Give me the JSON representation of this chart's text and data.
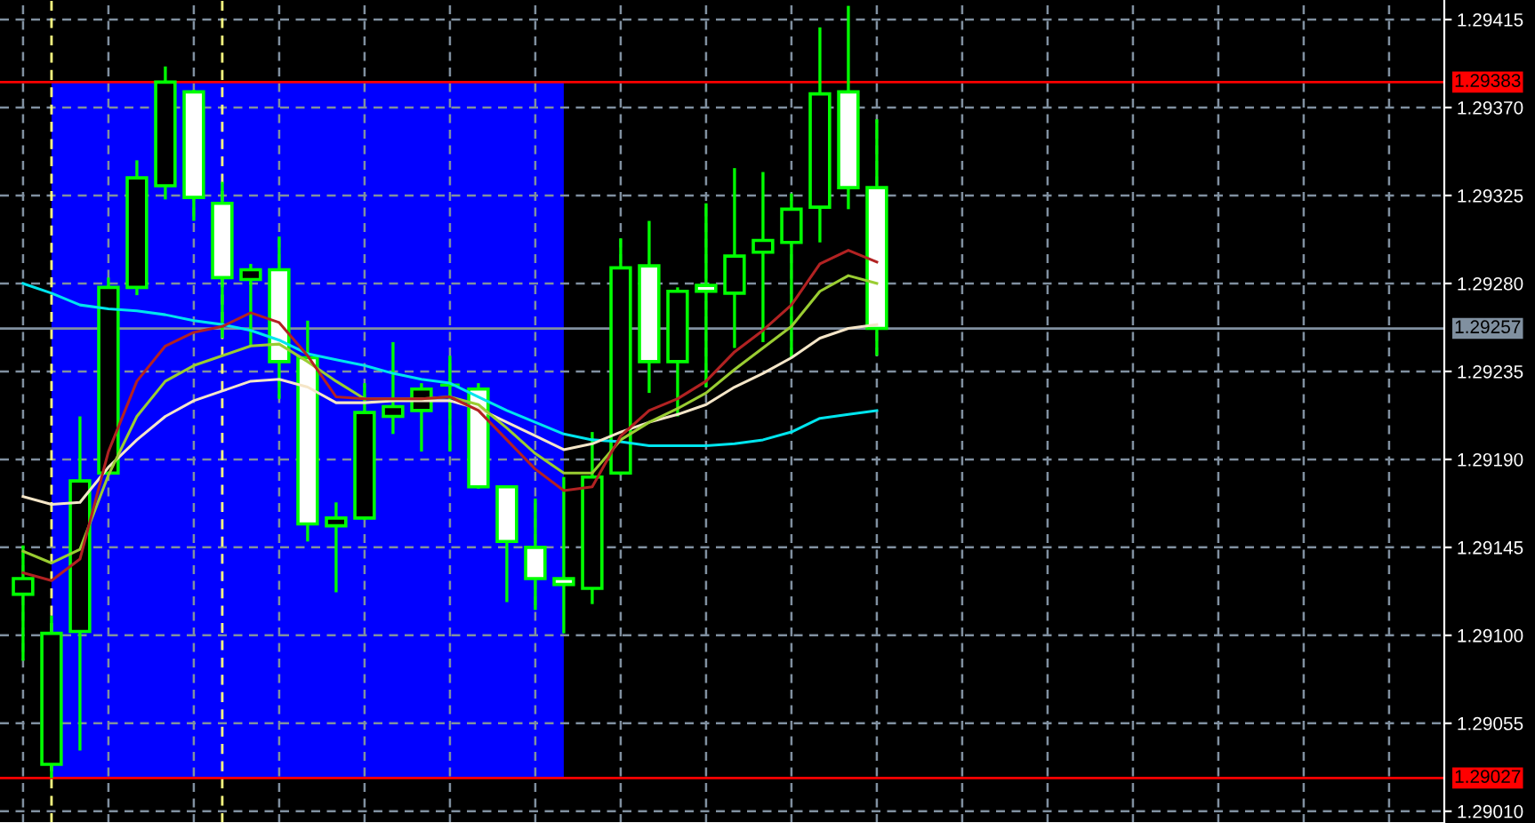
{
  "chart_data": {
    "type": "candlestick",
    "ylim": [
      1.29004,
      1.29425
    ],
    "yticks": [
      {
        "value": 1.2901,
        "label": "1.29010"
      },
      1.29055,
      {
        "value": 1.291,
        "label": "1.29100"
      },
      1.29145,
      {
        "value": 1.2919,
        "label": "1.29190"
      },
      1.29235,
      {
        "value": 1.2928,
        "label": "1.29280"
      },
      1.29325,
      {
        "value": 1.2937,
        "label": "1.29370"
      },
      1.29415
    ],
    "categories": [
      null,
      null,
      null,
      null,
      null,
      null,
      null,
      null,
      null,
      null,
      null,
      null,
      null,
      null,
      null,
      null,
      null,
      null,
      null,
      null,
      null,
      null,
      null,
      null,
      null,
      null,
      null,
      null,
      null,
      null,
      null
    ],
    "tick_labels": "y",
    "grid": true,
    "ref_lines": [
      {
        "axis": "y",
        "value": 1.29383,
        "label": "1.29383",
        "color": "#ff0000"
      },
      {
        "axis": "y",
        "value": 1.29027,
        "label": "1.29027",
        "color": "#ff0000"
      },
      {
        "axis": "y",
        "value": 1.29257,
        "label": "1.29257",
        "color": "#8090a0"
      }
    ],
    "series": [
      {
        "type": "line",
        "color": "#00e5ee",
        "values": [
          1.2928,
          1.29275,
          1.29269,
          1.29267,
          1.29266,
          1.29264,
          1.29261,
          1.29259,
          1.29256,
          1.29251,
          1.29244,
          1.29241,
          1.29238,
          1.29234,
          1.29231,
          1.29229,
          1.29222,
          1.29215,
          1.29209,
          1.29203,
          1.292,
          1.29199,
          1.29197,
          1.29197,
          1.29197,
          1.29198,
          1.292,
          1.29204,
          1.29211,
          1.29213,
          1.29215
        ]
      },
      {
        "type": "line",
        "color": "#f5e6c8",
        "values": [
          1.29171,
          1.29167,
          1.29168,
          1.29186,
          1.292,
          1.29212,
          1.2922,
          1.29225,
          1.2923,
          1.29231,
          1.29227,
          1.29219,
          1.29219,
          1.2922,
          1.2922,
          1.2922,
          1.29216,
          1.29209,
          1.29202,
          1.29195,
          1.29198,
          1.29204,
          1.29209,
          1.29213,
          1.29218,
          1.29227,
          1.29234,
          1.29242,
          1.29252,
          1.29257,
          1.29259
        ]
      },
      {
        "type": "line",
        "color": "#9acd32",
        "values": [
          1.29143,
          1.29137,
          1.29144,
          1.29182,
          1.29212,
          1.2923,
          1.29238,
          1.29243,
          1.29248,
          1.29249,
          1.2924,
          1.2923,
          1.29221,
          1.29221,
          1.29221,
          1.29222,
          1.29218,
          1.29206,
          1.29193,
          1.29183,
          1.29183,
          1.292,
          1.29209,
          1.29216,
          1.29224,
          1.29236,
          1.29247,
          1.29258,
          1.29276,
          1.29284,
          1.2928
        ]
      },
      {
        "type": "line",
        "color": "#b22222",
        "values": [
          1.29132,
          1.29128,
          1.29139,
          1.29194,
          1.2923,
          1.29248,
          1.29255,
          1.29258,
          1.29265,
          1.2926,
          1.29243,
          1.29222,
          1.29221,
          1.29221,
          1.29221,
          1.29222,
          1.29215,
          1.292,
          1.29185,
          1.29174,
          1.29176,
          1.29202,
          1.29215,
          1.29221,
          1.2923,
          1.29245,
          1.29256,
          1.29269,
          1.2929,
          1.29297,
          1.29291
        ]
      },
      {
        "color": "#00ff00",
        "colors": [
          "#000000",
          "#000000",
          "#000000",
          "#000000",
          "#000000",
          "#000000",
          "#ffffff",
          "#ffffff",
          "#000000",
          "#ffffff",
          "#ffffff",
          "#000000",
          "#000000",
          "#000000",
          "#000000",
          "#00ff00",
          "#ffffff",
          "#ffffff",
          "#ffffff",
          "#ffffff",
          "#000000",
          "#000000",
          "#ffffff",
          "#000000",
          "#ffffff",
          "#000000",
          "#000000",
          "#000000",
          "#000000",
          "#ffffff",
          "#ffffff"
        ],
        "ohlc": [
          [
            1.29121,
            1.29146,
            1.29087,
            1.29129
          ],
          [
            1.29034,
            1.2911,
            1.29027,
            1.29101
          ],
          [
            1.29102,
            1.29212,
            1.29041,
            1.29179
          ],
          [
            1.29183,
            1.29283,
            1.29182,
            1.29278
          ],
          [
            1.29278,
            1.29343,
            1.29274,
            1.29334
          ],
          [
            1.2933,
            1.29391,
            1.29323,
            1.29383
          ],
          [
            1.29378,
            1.29379,
            1.29312,
            1.29324
          ],
          [
            1.29321,
            1.29332,
            1.29252,
            1.29283
          ],
          [
            1.29282,
            1.2929,
            1.29248,
            1.29287
          ],
          [
            1.29287,
            1.29304,
            1.29221,
            1.2924
          ],
          [
            1.29242,
            1.29261,
            1.29148,
            1.29157
          ],
          [
            1.29156,
            1.29168,
            1.29122,
            1.2916
          ],
          [
            1.2916,
            1.29229,
            1.29159,
            1.29214
          ],
          [
            1.29212,
            1.2925,
            1.29203,
            1.29217
          ],
          [
            1.29215,
            1.29229,
            1.29194,
            1.29226
          ],
          [
            1.29228,
            1.29243,
            1.29194,
            1.29228
          ],
          [
            1.29226,
            1.29229,
            1.29175,
            1.29176
          ],
          [
            1.29176,
            1.29176,
            1.29117,
            1.29148
          ],
          [
            1.29145,
            1.2917,
            1.29113,
            1.29129
          ],
          [
            1.29129,
            1.29181,
            1.29101,
            1.29126
          ],
          [
            1.29124,
            1.29204,
            1.29116,
            1.29181
          ],
          [
            1.29183,
            1.29303,
            1.29182,
            1.29288
          ],
          [
            1.29289,
            1.29312,
            1.29224,
            1.2924
          ],
          [
            1.2924,
            1.29278,
            1.29212,
            1.29276
          ],
          [
            1.29279,
            1.29321,
            1.29227,
            1.29276
          ],
          [
            1.29275,
            1.29339,
            1.29247,
            1.29294
          ],
          [
            1.29296,
            1.29337,
            1.2925,
            1.29302
          ],
          [
            1.29301,
            1.29326,
            1.29242,
            1.29318
          ],
          [
            1.29319,
            1.29411,
            1.29301,
            1.29377
          ],
          [
            1.29378,
            1.29422,
            1.29318,
            1.29329
          ],
          [
            1.29329,
            1.29364,
            1.29243,
            1.29257
          ]
        ]
      }
    ]
  }
}
